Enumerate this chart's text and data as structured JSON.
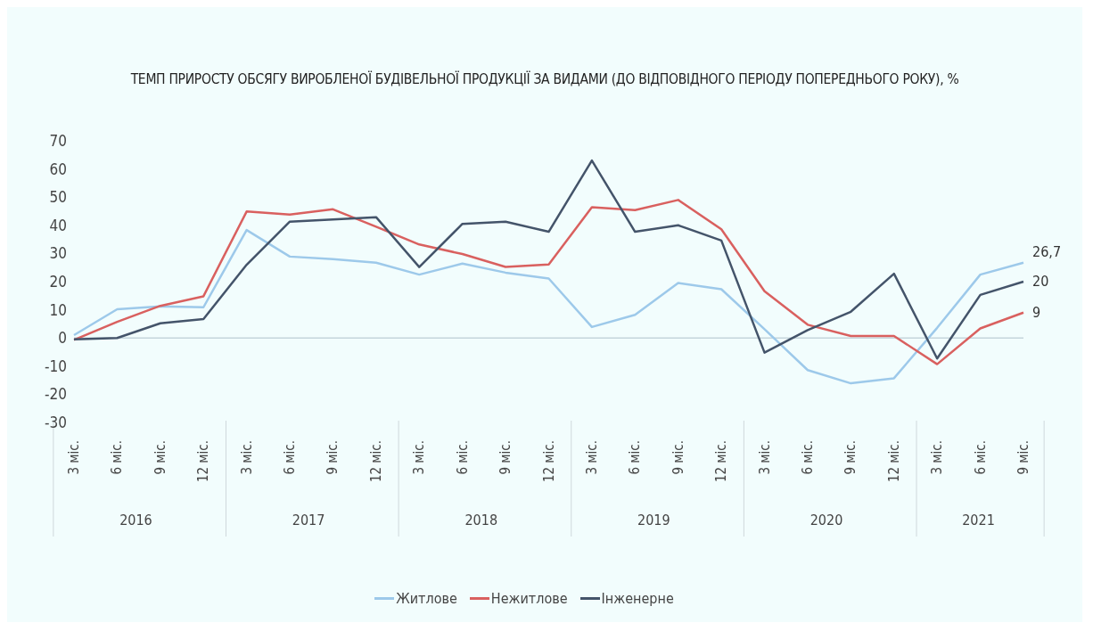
{
  "chart_data": {
    "type": "line",
    "title": "ТЕМП ПРИРОСТУ ОБСЯГУ ВИРОБЛЕНОЇ БУДІВЕЛЬНОЇ ПРОДУКЦІЇ ЗА ВИДАМИ (ДО ВІДПОВІДНОГО ПЕРІОДУ ПОПЕРЕДНЬОГО РОКУ), %",
    "categories": [
      "3 міс.",
      "6 міс.",
      "9 міс.",
      "12 міс.",
      "3 міс.",
      "6 міс.",
      "9 міс.",
      "12 міс.",
      "3 міс.",
      "6 міс.",
      "9 міс.",
      "12 міс.",
      "3 міс.",
      "6 міс.",
      "9 міс.",
      "12 міс.",
      "3 міс.",
      "6 міс.",
      "9 міс.",
      "12 міс.",
      "3 міс.",
      "6 міс.",
      "9 міс."
    ],
    "annotations": [
      "2016",
      "2017",
      "2018",
      "2019",
      "2020",
      "2021"
    ],
    "series": [
      {
        "name": "Житлове",
        "color": "#9dc9ea",
        "values": [
          1.0,
          10.2,
          11.2,
          10.9,
          38.3,
          28.9,
          28.0,
          26.7,
          22.5,
          26.4,
          23.2,
          21.1,
          3.9,
          8.2,
          19.5,
          17.3,
          3.1,
          -11.4,
          -16.1,
          -14.3,
          3.6,
          22.5,
          26.7
        ],
        "value_labels": [
          null,
          null,
          null,
          null,
          null,
          null,
          null,
          null,
          null,
          null,
          null,
          null,
          null,
          null,
          null,
          null,
          null,
          null,
          null,
          null,
          null,
          null,
          "26,7"
        ]
      },
      {
        "name": "Нежитлове",
        "color": "#d9605f",
        "values": [
          -0.7,
          5.7,
          11.4,
          14.8,
          44.9,
          43.8,
          45.7,
          39.5,
          33.2,
          29.8,
          25.2,
          26.1,
          46.4,
          45.4,
          49.0,
          38.6,
          16.6,
          4.7,
          0.7,
          0.7,
          -9.3,
          3.4,
          9
        ],
        "value_labels": [
          null,
          null,
          null,
          null,
          null,
          null,
          null,
          null,
          null,
          null,
          null,
          null,
          null,
          null,
          null,
          null,
          null,
          null,
          null,
          null,
          null,
          null,
          "9"
        ]
      },
      {
        "name": "Інженерне",
        "color": "#44546a",
        "values": [
          -0.5,
          0,
          5.2,
          6.7,
          26.0,
          41.3,
          42.1,
          42.9,
          25.2,
          40.5,
          41.3,
          37.7,
          63.0,
          37.7,
          40.0,
          34.6,
          -5.2,
          2.8,
          9.3,
          22.8,
          -7.3,
          15.3,
          20
        ],
        "value_labels": [
          null,
          null,
          null,
          null,
          null,
          null,
          null,
          null,
          null,
          null,
          null,
          null,
          null,
          null,
          null,
          null,
          null,
          null,
          null,
          null,
          null,
          null,
          "20"
        ]
      }
    ],
    "ylim": [
      -30,
      70
    ],
    "yticks": [
      -30,
      -20,
      -10,
      0,
      10,
      20,
      30,
      40,
      50,
      60,
      70
    ],
    "ref_lines": [
      {
        "axis": "y",
        "value": 0,
        "color": "#c5d5dc"
      }
    ],
    "grid": false,
    "legend": "bottom",
    "marker": "none",
    "line_style": "solid"
  }
}
